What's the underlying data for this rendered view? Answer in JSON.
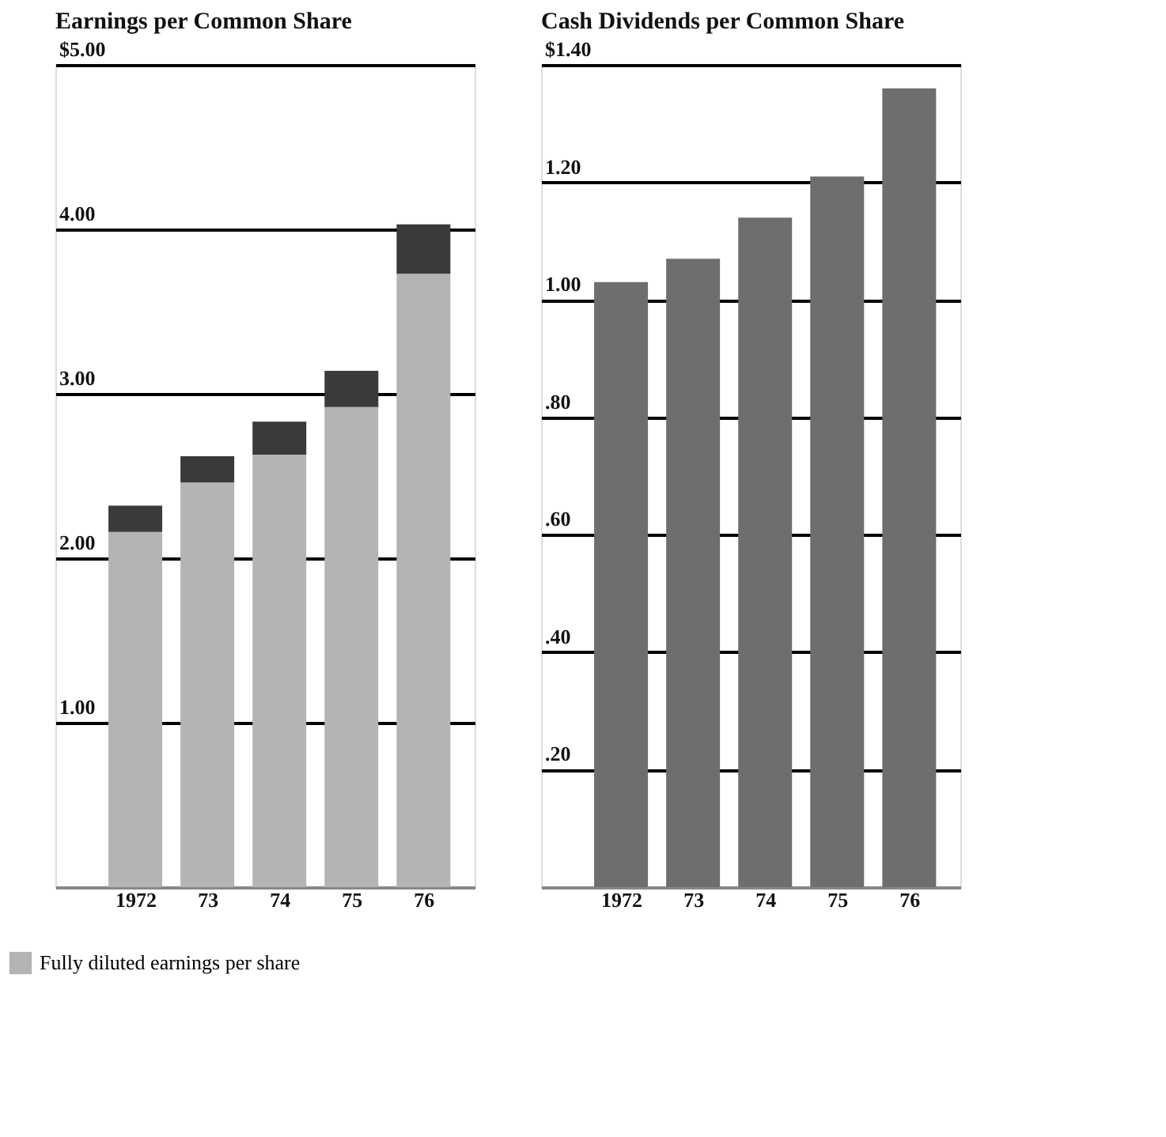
{
  "chart_data": [
    {
      "type": "bar",
      "title": "Earnings per Common Share",
      "stacked": true,
      "categories": [
        "1972",
        "73",
        "74",
        "75",
        "76"
      ],
      "series": [
        {
          "name": "Fully diluted earnings per share",
          "color": "#b4b4b4",
          "values": [
            2.16,
            2.46,
            2.63,
            2.92,
            3.73
          ]
        },
        {
          "color": "#3a3a3a",
          "values": [
            0.16,
            0.16,
            0.2,
            0.22,
            0.3
          ]
        }
      ],
      "ylim": [
        0,
        5
      ],
      "yticks": [
        {
          "value": 0,
          "label": null
        },
        {
          "value": 1,
          "label": "1.00"
        },
        {
          "value": 2,
          "label": "2.00"
        },
        {
          "value": 3,
          "label": "3.00"
        },
        {
          "value": 4,
          "label": "4.00"
        },
        {
          "value": 5,
          "label": "$5.00"
        }
      ],
      "grid": "y",
      "legend": "bottom left"
    },
    {
      "type": "bar",
      "title": "Cash Dividends per Common Share",
      "categories": [
        "1972",
        "73",
        "74",
        "75",
        "76"
      ],
      "series": [
        {
          "color": "#6e6e6e",
          "values": [
            1.03,
            1.07,
            1.14,
            1.21,
            1.36
          ]
        }
      ],
      "ylim": [
        0,
        1.4
      ],
      "yticks": [
        {
          "value": 0,
          "label": null
        },
        {
          "value": 0.2,
          "label": ".20"
        },
        {
          "value": 0.4,
          "label": ".40"
        },
        {
          "value": 0.6,
          "label": ".60"
        },
        {
          "value": 0.8,
          "label": ".80"
        },
        {
          "value": 1.0,
          "label": "1.00"
        },
        {
          "value": 1.2,
          "label": "1.20"
        },
        {
          "value": 1.4,
          "label": "$1.40"
        }
      ],
      "grid": "y"
    }
  ]
}
